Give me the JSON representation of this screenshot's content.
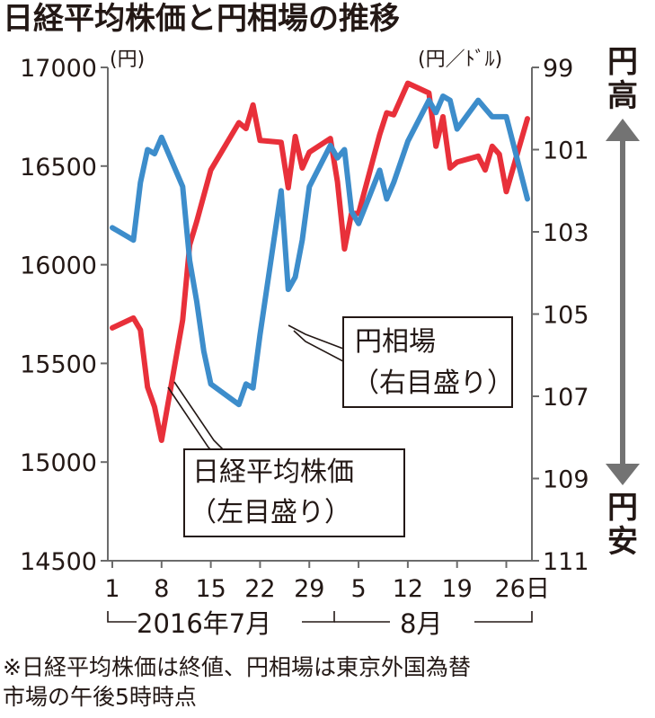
{
  "title": "日経平均株価と円相場の推移",
  "colors": {
    "nikkei": "#e8303a",
    "yen": "#3d8dcb",
    "axis": "#6b6b6b",
    "arrow": "#737373",
    "text": "#231815"
  },
  "left_axis": {
    "unit": "(円)",
    "ticks": [
      "17000",
      "16500",
      "16000",
      "15500",
      "15000",
      "14500"
    ]
  },
  "right_axis": {
    "unit": "(円／ﾄﾞﾙ)",
    "ticks": [
      "99",
      "101",
      "103",
      "105",
      "107",
      "109",
      "111"
    ]
  },
  "x_axis": {
    "ticks": [
      "1",
      "8",
      "15",
      "22",
      "29",
      "5",
      "12",
      "19",
      "26日"
    ]
  },
  "periods": {
    "july": "2016年7月",
    "august": "8月"
  },
  "labels": {
    "yen_line": [
      "円相場",
      "（右目盛り）"
    ],
    "nikkei_line": [
      "日経平均株価",
      "（左目盛り）"
    ]
  },
  "side_labels": {
    "top": [
      "円",
      "高"
    ],
    "bottom": [
      "円",
      "安"
    ]
  },
  "footnote": [
    "※日経平均株価は終値、円相場は東京外国為替",
    "市場の午後5時時点"
  ],
  "chart_data": {
    "type": "line",
    "title": "日経平均株価と円相場の推移",
    "x_range": [
      "2016-07-01",
      "2016-08-29"
    ],
    "x_ticks": [
      "7/1",
      "7/8",
      "7/15",
      "7/22",
      "7/29",
      "8/5",
      "8/12",
      "8/19",
      "8/26"
    ],
    "left_axis": {
      "unit": "円",
      "ylim": [
        14500,
        17000
      ],
      "ticks": [
        14500,
        15000,
        15500,
        16000,
        16500,
        17000
      ]
    },
    "right_axis": {
      "unit": "円/ドル",
      "ylim": [
        99,
        111
      ],
      "inverted": true,
      "ticks": [
        99,
        101,
        103,
        105,
        107,
        109,
        111
      ]
    },
    "series": [
      {
        "name": "日経平均株価",
        "axis": "left",
        "color": "#e8303a",
        "x": [
          "2016-07-01",
          "2016-07-04",
          "2016-07-05",
          "2016-07-06",
          "2016-07-07",
          "2016-07-08",
          "2016-07-11",
          "2016-07-12",
          "2016-07-13",
          "2016-07-14",
          "2016-07-15",
          "2016-07-19",
          "2016-07-20",
          "2016-07-21",
          "2016-07-22",
          "2016-07-25",
          "2016-07-26",
          "2016-07-27",
          "2016-07-28",
          "2016-07-29",
          "2016-08-01",
          "2016-08-02",
          "2016-08-03",
          "2016-08-04",
          "2016-08-05",
          "2016-08-08",
          "2016-08-09",
          "2016-08-10",
          "2016-08-12",
          "2016-08-15",
          "2016-08-16",
          "2016-08-17",
          "2016-08-18",
          "2016-08-19",
          "2016-08-22",
          "2016-08-23",
          "2016-08-24",
          "2016-08-25",
          "2016-08-26",
          "2016-08-29"
        ],
        "values": [
          15680,
          15730,
          15670,
          15380,
          15280,
          15110,
          15720,
          16100,
          16220,
          16350,
          16480,
          16720,
          16690,
          16810,
          16630,
          16620,
          16390,
          16650,
          16490,
          16570,
          16640,
          16420,
          16080,
          16260,
          16260,
          16660,
          16770,
          16760,
          16920,
          16870,
          16600,
          16750,
          16490,
          16520,
          16550,
          16480,
          16600,
          16560,
          16370,
          16740
        ]
      },
      {
        "name": "円相場",
        "axis": "right",
        "color": "#3d8dcb",
        "x": [
          "2016-07-01",
          "2016-07-04",
          "2016-07-05",
          "2016-07-06",
          "2016-07-07",
          "2016-07-08",
          "2016-07-11",
          "2016-07-12",
          "2016-07-13",
          "2016-07-14",
          "2016-07-15",
          "2016-07-19",
          "2016-07-20",
          "2016-07-21",
          "2016-07-22",
          "2016-07-25",
          "2016-07-26",
          "2016-07-27",
          "2016-07-28",
          "2016-07-29",
          "2016-08-01",
          "2016-08-02",
          "2016-08-03",
          "2016-08-04",
          "2016-08-05",
          "2016-08-08",
          "2016-08-09",
          "2016-08-10",
          "2016-08-12",
          "2016-08-15",
          "2016-08-16",
          "2016-08-17",
          "2016-08-18",
          "2016-08-19",
          "2016-08-22",
          "2016-08-23",
          "2016-08-24",
          "2016-08-25",
          "2016-08-26",
          "2016-08-29"
        ],
        "values": [
          102.9,
          103.2,
          101.8,
          101.0,
          101.1,
          100.7,
          101.9,
          103.7,
          104.7,
          105.9,
          106.7,
          107.2,
          106.7,
          106.8,
          105.5,
          102.0,
          104.4,
          104.1,
          103.2,
          101.9,
          100.9,
          101.2,
          101.0,
          102.5,
          102.8,
          101.5,
          102.2,
          101.8,
          100.8,
          99.8,
          100.1,
          99.7,
          99.8,
          100.5,
          99.8,
          100.0,
          100.2,
          100.2,
          100.2,
          102.2
        ]
      }
    ]
  }
}
